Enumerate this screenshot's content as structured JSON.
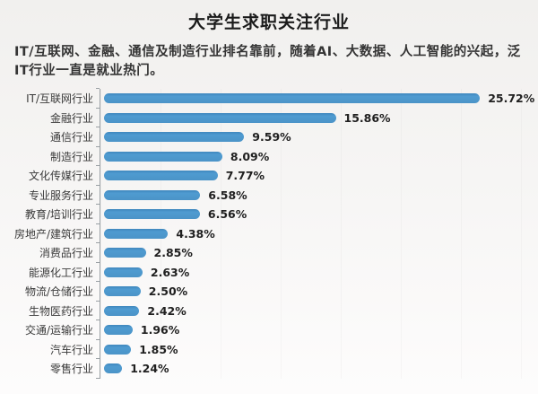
{
  "page": {
    "title": "大学生求职关注行业",
    "subtitle": "IT/互联网、金融、通信及制造行业排名靠前，随着AI、大数据、人工智能的兴起，泛IT行业一直是就业热门。"
  },
  "chart_data": {
    "type": "bar",
    "orientation": "horizontal",
    "title": "大学生求职关注行业",
    "subtitle": "IT/互联网、金融、通信及制造行业排名靠前，随着AI、大数据、人工智能的兴起，泛IT行业一直是就业热门。",
    "categories": [
      "IT/互联网行业",
      "金融行业",
      "通信行业",
      "制造行业",
      "文化传媒行业",
      "专业服务行业",
      "教育/培训行业",
      "房地产/建筑行业",
      "消费品行业",
      "能源化工行业",
      "物流/仓储行业",
      "生物医药行业",
      "交通/运输行业",
      "汽车行业",
      "零售行业"
    ],
    "values": [
      25.72,
      15.86,
      9.59,
      8.09,
      7.77,
      6.58,
      6.56,
      4.38,
      2.85,
      2.63,
      2.5,
      2.42,
      1.96,
      1.85,
      1.24
    ],
    "value_labels": [
      "25.72%",
      "15.86%",
      "9.59%",
      "8.09%",
      "7.77%",
      "6.58%",
      "6.56%",
      "4.38%",
      "2.85%",
      "2.63%",
      "2.50%",
      "2.42%",
      "1.96%",
      "1.85%",
      "1.24%"
    ],
    "xlim": [
      0,
      26
    ],
    "xlabel": "",
    "ylabel": "",
    "legend": "none",
    "grid": "faint-vertical",
    "bar_color": "#4b94c8",
    "axis_color": "#9aa0a4"
  }
}
